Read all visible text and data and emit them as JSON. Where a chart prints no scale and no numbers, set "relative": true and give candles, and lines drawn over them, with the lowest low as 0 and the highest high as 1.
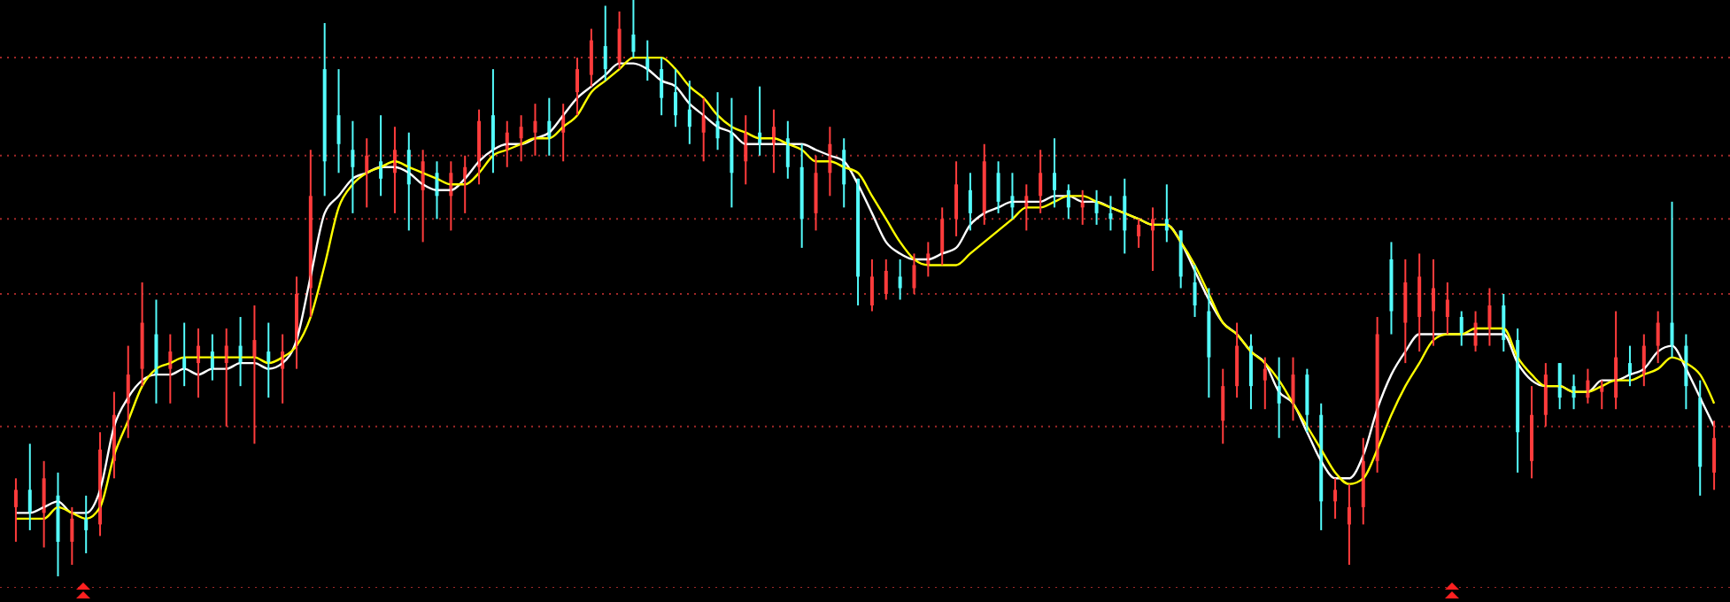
{
  "chart_data": {
    "type": "candlestick",
    "relative": true,
    "categories": [
      null,
      null,
      null,
      null,
      null,
      null,
      null,
      null,
      null,
      null,
      null,
      null,
      null,
      null,
      null,
      null,
      null,
      null,
      null,
      null,
      null,
      null,
      null,
      null,
      null,
      null,
      null,
      null,
      null,
      null,
      null,
      null,
      null,
      null,
      null,
      null,
      null,
      null,
      null,
      null,
      null,
      null,
      null,
      null,
      null,
      null,
      null,
      null,
      null,
      null,
      null,
      null,
      null,
      null,
      null,
      null,
      null,
      null,
      null,
      null,
      null,
      null,
      null,
      null,
      null,
      null,
      null,
      null,
      null,
      null,
      null,
      null,
      null,
      null,
      null,
      null,
      null,
      null,
      null,
      null,
      null,
      null,
      null,
      null,
      null,
      null,
      null,
      null,
      null,
      null,
      null,
      null,
      null,
      null,
      null,
      null,
      null,
      null,
      null,
      null,
      null,
      null,
      null,
      null,
      null,
      null,
      null,
      null,
      null,
      null,
      null,
      null,
      null,
      null,
      null,
      null,
      null,
      null,
      null,
      null,
      null,
      null
    ],
    "colors": [
      "#ff3c3c",
      "#54fcfc",
      "#ff3c3c",
      "#54fcfc",
      "#ff3c3c",
      "#54fcfc",
      "#ff3c3c",
      "#ff3c3c",
      "#ff3c3c",
      "#ff3c3c",
      "#54fcfc",
      "#ff3c3c",
      "#54fcfc",
      "#ff3c3c",
      "#54fcfc",
      "#ff3c3c",
      "#54fcfc",
      "#ff3c3c",
      "#54fcfc",
      "#ff3c3c",
      "#ff3c3c",
      "#ff3c3c",
      "#54fcfc",
      "#54fcfc",
      "#54fcfc",
      "#ff3c3c",
      "#54fcfc",
      "#ff3c3c",
      "#54fcfc",
      "#ff3c3c",
      "#54fcfc",
      "#ff3c3c",
      "#ff3c3c",
      "#ff3c3c",
      "#54fcfc",
      "#ff3c3c",
      "#ff3c3c",
      "#ff3c3c",
      "#54fcfc",
      "#ff3c3c",
      "#ff3c3c",
      "#ff3c3c",
      "#54fcfc",
      "#ff3c3c",
      "#54fcfc",
      "#54fcfc",
      "#54fcfc",
      "#54fcfc",
      "#54fcfc",
      "#ff3c3c",
      "#54fcfc",
      "#54fcfc",
      "#ff3c3c",
      "#54fcfc",
      "#ff3c3c",
      "#54fcfc",
      "#54fcfc",
      "#ff3c3c",
      "#ff3c3c",
      "#54fcfc",
      "#54fcfc",
      "#ff3c3c",
      "#ff3c3c",
      "#54fcfc",
      "#ff3c3c",
      "#ff3c3c",
      "#ff3c3c",
      "#ff3c3c",
      "#54fcfc",
      "#ff3c3c",
      "#54fcfc",
      "#54fcfc",
      "#ff3c3c",
      "#ff3c3c",
      "#54fcfc",
      "#54fcfc",
      "#ff3c3c",
      "#54fcfc",
      "#54fcfc",
      "#54fcfc",
      "#ff3c3c",
      "#ff3c3c",
      "#54fcfc",
      "#54fcfc",
      "#54fcfc",
      "#54fcfc",
      "#ff3c3c",
      "#ff3c3c",
      "#54fcfc",
      "#ff3c3c",
      "#54fcfc",
      "#ff3c3c",
      "#54fcfc",
      "#54fcfc",
      "#ff3c3c",
      "#ff3c3c",
      "#ff3c3c",
      "#ff3c3c",
      "#54fcfc",
      "#ff3c3c",
      "#ff3c3c",
      "#ff3c3c",
      "#ff3c3c",
      "#54fcfc",
      "#ff3c3c",
      "#ff3c3c",
      "#54fcfc",
      "#54fcfc",
      "#ff3c3c",
      "#ff3c3c",
      "#54fcfc",
      "#54fcfc",
      "#ff3c3c",
      "#ff3c3c",
      "#ff3c3c",
      "#54fcfc",
      "#ff3c3c",
      "#ff3c3c",
      "#54fcfc",
      "#54fcfc",
      "#54fcfc",
      "#ff3c3c"
    ],
    "ohlc": [
      [
        0.12,
        0.17,
        0.06,
        0.15
      ],
      [
        0.15,
        0.23,
        0.08,
        0.11
      ],
      [
        0.11,
        0.2,
        0.05,
        0.17
      ],
      [
        0.14,
        0.18,
        0,
        0.06
      ],
      [
        0.06,
        0.12,
        0.02,
        0.1
      ],
      [
        0.1,
        0.14,
        0.04,
        0.08
      ],
      [
        0.09,
        0.25,
        0.07,
        0.22
      ],
      [
        0.2,
        0.32,
        0.17,
        0.28
      ],
      [
        0.3,
        0.4,
        0.24,
        0.35
      ],
      [
        0.36,
        0.51,
        0.33,
        0.44
      ],
      [
        0.42,
        0.48,
        0.3,
        0.35
      ],
      [
        0.36,
        0.42,
        0.3,
        0.39
      ],
      [
        0.38,
        0.44,
        0.33,
        0.36
      ],
      [
        0.37,
        0.43,
        0.31,
        0.4
      ],
      [
        0.39,
        0.42,
        0.34,
        0.36
      ],
      [
        0.37,
        0.43,
        0.26,
        0.4
      ],
      [
        0.4,
        0.45,
        0.33,
        0.37
      ],
      [
        0.38,
        0.47,
        0.23,
        0.41
      ],
      [
        0.39,
        0.44,
        0.31,
        0.37
      ],
      [
        0.36,
        0.42,
        0.3,
        0.39
      ],
      [
        0.4,
        0.52,
        0.36,
        0.49
      ],
      [
        0.5,
        0.74,
        0.45,
        0.66
      ],
      [
        0.88,
        0.96,
        0.66,
        0.72
      ],
      [
        0.8,
        0.88,
        0.7,
        0.75
      ],
      [
        0.74,
        0.79,
        0.63,
        0.71
      ],
      [
        0.7,
        0.76,
        0.64,
        0.73
      ],
      [
        0.72,
        0.8,
        0.66,
        0.69
      ],
      [
        0.7,
        0.78,
        0.63,
        0.74
      ],
      [
        0.74,
        0.77,
        0.6,
        0.68
      ],
      [
        0.67,
        0.74,
        0.58,
        0.72
      ],
      [
        0.7,
        0.72,
        0.62,
        0.66
      ],
      [
        0.66,
        0.72,
        0.6,
        0.7
      ],
      [
        0.69,
        0.73,
        0.63,
        0.71
      ],
      [
        0.71,
        0.81,
        0.68,
        0.79
      ],
      [
        0.8,
        0.88,
        0.7,
        0.74
      ],
      [
        0.74,
        0.79,
        0.71,
        0.77
      ],
      [
        0.76,
        0.8,
        0.72,
        0.78
      ],
      [
        0.77,
        0.82,
        0.73,
        0.79
      ],
      [
        0.79,
        0.83,
        0.73,
        0.76
      ],
      [
        0.77,
        0.82,
        0.72,
        0.8
      ],
      [
        0.84,
        0.9,
        0.8,
        0.88
      ],
      [
        0.87,
        0.95,
        0.85,
        0.93
      ],
      [
        0.92,
        0.99,
        0.86,
        0.88
      ],
      [
        0.89,
        0.98,
        0.88,
        0.95
      ],
      [
        0.94,
        1,
        0.9,
        0.91
      ],
      [
        0.9,
        0.93,
        0.86,
        0.88
      ],
      [
        0.88,
        0.9,
        0.8,
        0.83
      ],
      [
        0.84,
        0.88,
        0.78,
        0.8
      ],
      [
        0.81,
        0.86,
        0.75,
        0.78
      ],
      [
        0.77,
        0.83,
        0.72,
        0.8
      ],
      [
        0.79,
        0.84,
        0.74,
        0.76
      ],
      [
        0.77,
        0.83,
        0.64,
        0.7
      ],
      [
        0.72,
        0.8,
        0.68,
        0.77
      ],
      [
        0.77,
        0.85,
        0.73,
        0.75
      ],
      [
        0.75,
        0.81,
        0.7,
        0.78
      ],
      [
        0.76,
        0.79,
        0.69,
        0.71
      ],
      [
        0.71,
        0.75,
        0.57,
        0.62
      ],
      [
        0.63,
        0.73,
        0.6,
        0.7
      ],
      [
        0.7,
        0.78,
        0.66,
        0.75
      ],
      [
        0.74,
        0.76,
        0.64,
        0.68
      ],
      [
        0.69,
        0.69,
        0.47,
        0.52
      ],
      [
        0.47,
        0.55,
        0.46,
        0.52
      ],
      [
        0.49,
        0.55,
        0.48,
        0.53
      ],
      [
        0.52,
        0.55,
        0.48,
        0.5
      ],
      [
        0.5,
        0.56,
        0.49,
        0.54
      ],
      [
        0.54,
        0.58,
        0.52,
        0.56
      ],
      [
        0.56,
        0.64,
        0.54,
        0.62
      ],
      [
        0.62,
        0.72,
        0.59,
        0.68
      ],
      [
        0.67,
        0.7,
        0.6,
        0.63
      ],
      [
        0.63,
        0.75,
        0.61,
        0.72
      ],
      [
        0.7,
        0.72,
        0.63,
        0.65
      ],
      [
        0.66,
        0.7,
        0.62,
        0.64
      ],
      [
        0.64,
        0.68,
        0.6,
        0.66
      ],
      [
        0.66,
        0.74,
        0.63,
        0.7
      ],
      [
        0.7,
        0.76,
        0.64,
        0.67
      ],
      [
        0.67,
        0.68,
        0.62,
        0.64
      ],
      [
        0.64,
        0.67,
        0.61,
        0.65
      ],
      [
        0.65,
        0.67,
        0.61,
        0.63
      ],
      [
        0.63,
        0.66,
        0.6,
        0.62
      ],
      [
        0.66,
        0.69,
        0.56,
        0.6
      ],
      [
        0.59,
        0.62,
        0.57,
        0.61
      ],
      [
        0.6,
        0.64,
        0.53,
        0.62
      ],
      [
        0.62,
        0.68,
        0.58,
        0.6
      ],
      [
        0.6,
        0.6,
        0.5,
        0.52
      ],
      [
        0.51,
        0.54,
        0.45,
        0.47
      ],
      [
        0.46,
        0.5,
        0.31,
        0.38
      ],
      [
        0.27,
        0.36,
        0.23,
        0.33
      ],
      [
        0.33,
        0.44,
        0.31,
        0.4
      ],
      [
        0.4,
        0.42,
        0.29,
        0.33
      ],
      [
        0.34,
        0.38,
        0.29,
        0.36
      ],
      [
        0.33,
        0.38,
        0.24,
        0.3
      ],
      [
        0.3,
        0.38,
        0.27,
        0.35
      ],
      [
        0.35,
        0.36,
        0.25,
        0.28
      ],
      [
        0.28,
        0.3,
        0.08,
        0.13
      ],
      [
        0.13,
        0.17,
        0.1,
        0.15
      ],
      [
        0.09,
        0.16,
        0.02,
        0.12
      ],
      [
        0.12,
        0.24,
        0.09,
        0.2
      ],
      [
        0.2,
        0.45,
        0.18,
        0.42
      ],
      [
        0.55,
        0.58,
        0.42,
        0.46
      ],
      [
        0.44,
        0.55,
        0.37,
        0.51
      ],
      [
        0.45,
        0.56,
        0.39,
        0.52
      ],
      [
        0.46,
        0.55,
        0.4,
        0.5
      ],
      [
        0.45,
        0.51,
        0.42,
        0.48
      ],
      [
        0.45,
        0.46,
        0.4,
        0.42
      ],
      [
        0.4,
        0.46,
        0.39,
        0.44
      ],
      [
        0.43,
        0.5,
        0.4,
        0.47
      ],
      [
        0.47,
        0.49,
        0.39,
        0.41
      ],
      [
        0.41,
        0.43,
        0.18,
        0.25
      ],
      [
        0.2,
        0.33,
        0.17,
        0.28
      ],
      [
        0.28,
        0.37,
        0.26,
        0.35
      ],
      [
        0.37,
        0.37,
        0.29,
        0.31
      ],
      [
        0.33,
        0.35,
        0.29,
        0.31
      ],
      [
        0.31,
        0.36,
        0.3,
        0.34
      ],
      [
        0.32,
        0.34,
        0.29,
        0.33
      ],
      [
        0.31,
        0.46,
        0.29,
        0.38
      ],
      [
        0.37,
        0.4,
        0.33,
        0.35
      ],
      [
        0.35,
        0.42,
        0.33,
        0.4
      ],
      [
        0.4,
        0.46,
        0.37,
        0.44
      ],
      [
        0.44,
        0.65,
        0.38,
        0.4
      ],
      [
        0.4,
        0.42,
        0.29,
        0.33
      ],
      [
        0.31,
        0.34,
        0.14,
        0.19
      ],
      [
        0.18,
        0.27,
        0.15,
        0.24
      ]
    ],
    "series": [
      {
        "type": "line",
        "color": "#ffffff",
        "values": [
          0.11,
          0.11,
          0.12,
          0.13,
          0.11,
          0.11,
          0.15,
          0.26,
          0.31,
          0.34,
          0.35,
          0.35,
          0.36,
          0.35,
          0.36,
          0.36,
          0.37,
          0.37,
          0.36,
          0.37,
          0.41,
          0.52,
          0.63,
          0.66,
          0.69,
          0.7,
          0.71,
          0.71,
          0.7,
          0.68,
          0.67,
          0.67,
          0.69,
          0.72,
          0.74,
          0.75,
          0.75,
          0.76,
          0.77,
          0.8,
          0.83,
          0.85,
          0.87,
          0.89,
          0.89,
          0.88,
          0.86,
          0.85,
          0.82,
          0.8,
          0.78,
          0.77,
          0.75,
          0.75,
          0.75,
          0.75,
          0.75,
          0.74,
          0.73,
          0.72,
          0.68,
          0.63,
          0.58,
          0.56,
          0.55,
          0.55,
          0.56,
          0.57,
          0.61,
          0.63,
          0.64,
          0.65,
          0.65,
          0.65,
          0.66,
          0.66,
          0.65,
          0.65,
          0.64,
          0.63,
          0.62,
          0.61,
          0.61,
          0.58,
          0.53,
          0.48,
          0.44,
          0.42,
          0.39,
          0.37,
          0.32,
          0.3,
          0.25,
          0.2,
          0.17,
          0.17,
          0.21,
          0.29,
          0.35,
          0.39,
          0.42,
          0.42,
          0.42,
          0.42,
          0.42,
          0.42,
          0.42,
          0.37,
          0.34,
          0.33,
          0.33,
          0.32,
          0.32,
          0.34,
          0.34,
          0.35,
          0.36,
          0.39,
          0.4,
          0.36,
          0.31,
          0.26
        ]
      },
      {
        "type": "line",
        "color": "#ffff00",
        "values": [
          0.1,
          0.1,
          0.1,
          0.12,
          0.11,
          0.1,
          0.12,
          0.21,
          0.27,
          0.33,
          0.36,
          0.37,
          0.38,
          0.38,
          0.38,
          0.38,
          0.38,
          0.38,
          0.37,
          0.38,
          0.4,
          0.45,
          0.54,
          0.64,
          0.68,
          0.7,
          0.71,
          0.72,
          0.71,
          0.7,
          0.69,
          0.68,
          0.68,
          0.7,
          0.73,
          0.74,
          0.75,
          0.76,
          0.76,
          0.78,
          0.8,
          0.84,
          0.86,
          0.88,
          0.9,
          0.9,
          0.9,
          0.88,
          0.85,
          0.83,
          0.8,
          0.78,
          0.77,
          0.76,
          0.76,
          0.75,
          0.74,
          0.72,
          0.72,
          0.71,
          0.7,
          0.66,
          0.62,
          0.58,
          0.55,
          0.54,
          0.54,
          0.54,
          0.56,
          0.58,
          0.6,
          0.62,
          0.64,
          0.64,
          0.65,
          0.66,
          0.66,
          0.65,
          0.64,
          0.63,
          0.62,
          0.61,
          0.61,
          0.58,
          0.54,
          0.49,
          0.44,
          0.42,
          0.39,
          0.37,
          0.34,
          0.3,
          0.26,
          0.22,
          0.18,
          0.16,
          0.17,
          0.22,
          0.28,
          0.33,
          0.37,
          0.41,
          0.42,
          0.42,
          0.43,
          0.43,
          0.43,
          0.38,
          0.35,
          0.33,
          0.33,
          0.32,
          0.32,
          0.33,
          0.34,
          0.34,
          0.35,
          0.36,
          0.38,
          0.37,
          0.35,
          0.3
        ]
      }
    ],
    "ref_lines": [
      {
        "axis": "y",
        "value": 0.9,
        "color": "#a02828",
        "line_style": "dotted"
      },
      {
        "axis": "y",
        "value": 0.73,
        "color": "#a02828",
        "line_style": "dotted"
      },
      {
        "axis": "y",
        "value": 0.62,
        "color": "#a02828",
        "line_style": "dotted"
      },
      {
        "axis": "y",
        "value": 0.49,
        "color": "#a02828",
        "line_style": "dotted"
      },
      {
        "axis": "y",
        "value": 0.26,
        "color": "#a02828",
        "line_style": "dotted"
      },
      {
        "axis": "y",
        "value": -0.02,
        "color": "#a02828",
        "line_style": "dotted"
      }
    ]
  }
}
